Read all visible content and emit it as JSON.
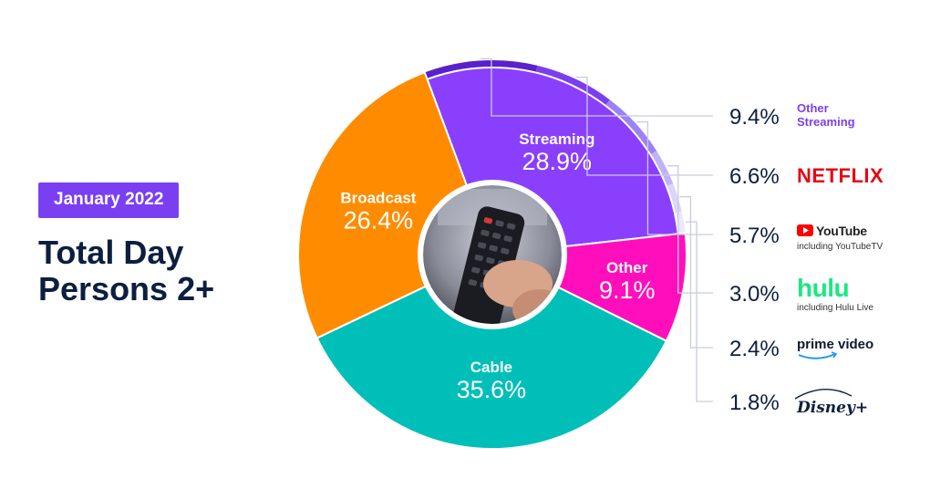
{
  "header": {
    "date_badge": "January 2022",
    "title_line1": "Total Day",
    "title_line2": "Persons 2+"
  },
  "colors": {
    "badge": "#7b3ff2",
    "title": "#0c1f3f",
    "streaming": "#8a3ffc",
    "cable": "#00bfb8",
    "broadcast": "#ff8c00",
    "other": "#ff0fbb",
    "streaming_breakdown": [
      "#5a20cc",
      "#7a3ef0",
      "#9c82f5",
      "#c0b2f7",
      "#dcd4fa",
      "#ece7fc"
    ]
  },
  "center_image": {
    "icon": "tv-remote-photo-icon"
  },
  "chart_data": {
    "type": "pie",
    "donut": true,
    "slices": [
      {
        "label": "Streaming",
        "value": 28.9,
        "display": "28.9%"
      },
      {
        "label": "Other",
        "value": 9.1,
        "display": "9.1%"
      },
      {
        "label": "Cable",
        "value": 35.6,
        "display": "35.6%"
      },
      {
        "label": "Broadcast",
        "value": 26.4,
        "display": "26.4%"
      }
    ],
    "streaming_breakdown": [
      {
        "label": "Other Streaming",
        "value": 9.4,
        "display": "9.4%",
        "brand_line1": "Other",
        "brand_line2": "Streaming"
      },
      {
        "label": "NETFLIX",
        "value": 6.6,
        "display": "6.6%",
        "brand_line1": "NETFLIX"
      },
      {
        "label": "YouTube",
        "value": 5.7,
        "display": "5.7%",
        "brand_line1": "YouTube",
        "brand_line2": "including YouTubeTV"
      },
      {
        "label": "hulu",
        "value": 3.0,
        "display": "3.0%",
        "brand_line1": "hulu",
        "brand_line2": "including Hulu Live"
      },
      {
        "label": "prime video",
        "value": 2.4,
        "display": "2.4%",
        "brand_line1": "prime video"
      },
      {
        "label": "Disney+",
        "value": 1.8,
        "display": "1.8%",
        "brand_line1": "Disney+"
      }
    ]
  }
}
